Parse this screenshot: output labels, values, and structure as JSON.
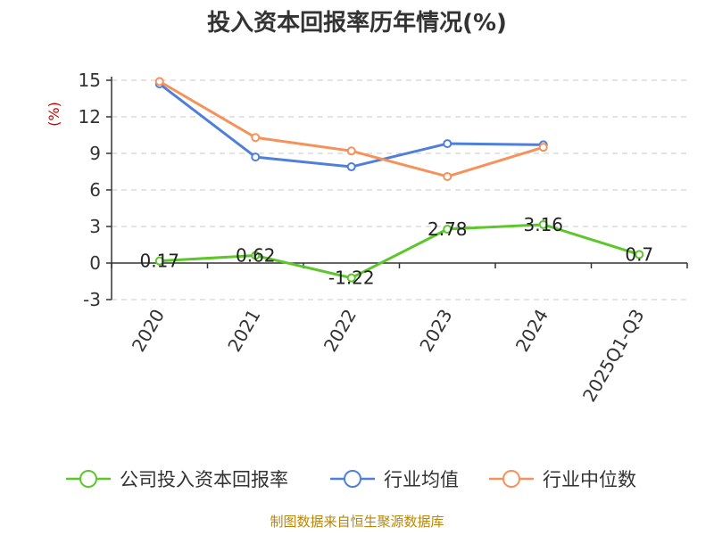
{
  "chart_data": {
    "type": "line",
    "title": "投入资本回报率历年情况(%)",
    "ylabel": "(%)",
    "xlabel": "",
    "categories": [
      "2020",
      "2021",
      "2022",
      "2023",
      "2024",
      "2025Q1-Q3"
    ],
    "ylim": [
      -3,
      15
    ],
    "yticks": [
      -3,
      0,
      3,
      6,
      9,
      12,
      15
    ],
    "grid": true,
    "legend_position": "bottom",
    "series": [
      {
        "name": "公司投入资本回报率",
        "color": "#5cc72a",
        "values": [
          0.17,
          0.62,
          -1.22,
          2.78,
          3.16,
          0.7
        ],
        "labels": [
          "0.17",
          "0.62",
          "-1.22",
          "2.78",
          "3.16",
          "0.7"
        ]
      },
      {
        "name": "行业均值",
        "color": "#4f7fdc",
        "values": [
          14.7,
          8.7,
          7.9,
          9.8,
          9.7,
          null
        ]
      },
      {
        "name": "行业中位数",
        "color": "#f7915a",
        "values": [
          14.9,
          10.3,
          9.2,
          7.1,
          9.5,
          null
        ]
      }
    ]
  },
  "source_text": "制图数据来自恒生聚源数据库"
}
